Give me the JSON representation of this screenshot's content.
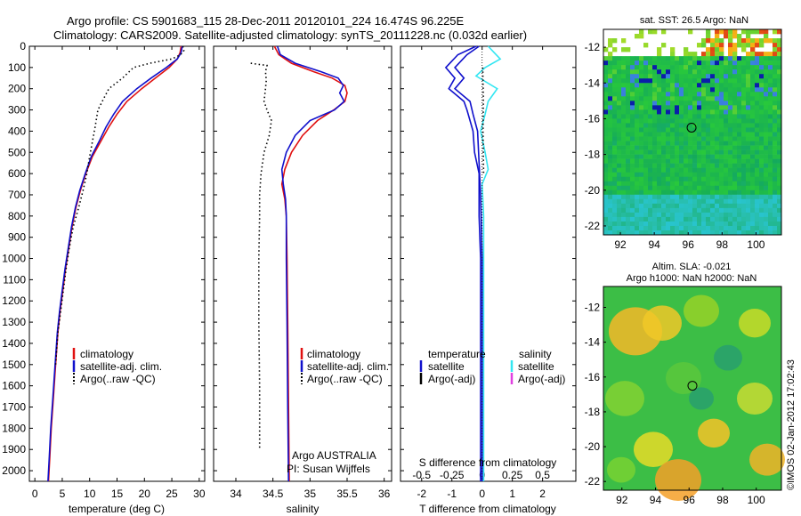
{
  "figure": {
    "title_line1": "Argo profile: CS 5901683_115 28-Dec-2011 20120101_224 16.474S 96.225E",
    "title_line2": "Climatology: CARS2009. Satellite-adjusted climatology: synTS_20111228.nc (0.032d earlier)",
    "watermark": "©IMOS 02-Jan-2012 17:02:43",
    "colors": {
      "climatology": "#e01010",
      "satellite": "#1010cc",
      "argo": "#000000",
      "salinity_satellite": "#33e6f2",
      "salinity_argo": "#e040e0"
    }
  },
  "chart_data": [
    {
      "id": "temperature",
      "type": "line",
      "xlabel": "temperature (deg C)",
      "xlim": [
        -1,
        31
      ],
      "ylim": [
        2050,
        0
      ],
      "x_ticks": [
        0,
        5,
        10,
        15,
        20,
        25,
        30
      ],
      "y_ticks": [
        0,
        100,
        200,
        300,
        400,
        500,
        600,
        700,
        800,
        900,
        1000,
        1100,
        1200,
        1300,
        1400,
        1500,
        1600,
        1700,
        1800,
        1900,
        2000
      ],
      "legend": [
        "climatology",
        "satellite-adj. clim.",
        "Argo(..raw -QC)"
      ],
      "series": [
        {
          "name": "climatology",
          "style": "solid",
          "color": "#e01010",
          "points": [
            [
              26.7,
              0
            ],
            [
              26.5,
              30
            ],
            [
              26.0,
              60
            ],
            [
              24.5,
              100
            ],
            [
              22.0,
              150
            ],
            [
              19.5,
              200
            ],
            [
              16.8,
              260
            ],
            [
              15.0,
              320
            ],
            [
              13.5,
              380
            ],
            [
              12.0,
              450
            ],
            [
              10.5,
              520
            ],
            [
              9.3,
              600
            ],
            [
              8.3,
              680
            ],
            [
              7.5,
              760
            ],
            [
              6.8,
              850
            ],
            [
              6.2,
              950
            ],
            [
              5.6,
              1050
            ],
            [
              5.1,
              1150
            ],
            [
              4.6,
              1250
            ],
            [
              4.2,
              1350
            ],
            [
              3.8,
              1500
            ],
            [
              3.4,
              1650
            ],
            [
              3.0,
              1800
            ],
            [
              2.7,
              1950
            ],
            [
              2.5,
              2050
            ]
          ]
        },
        {
          "name": "satellite-adj. clim.",
          "style": "solid",
          "color": "#1010cc",
          "points": [
            [
              26.9,
              0
            ],
            [
              26.7,
              30
            ],
            [
              26.0,
              60
            ],
            [
              24.0,
              100
            ],
            [
              21.2,
              150
            ],
            [
              18.6,
              200
            ],
            [
              16.0,
              260
            ],
            [
              14.4,
              320
            ],
            [
              13.0,
              380
            ],
            [
              11.7,
              450
            ],
            [
              10.3,
              520
            ],
            [
              9.2,
              600
            ],
            [
              8.2,
              680
            ],
            [
              7.4,
              760
            ],
            [
              6.7,
              850
            ],
            [
              6.1,
              950
            ],
            [
              5.5,
              1050
            ],
            [
              5.0,
              1150
            ],
            [
              4.5,
              1250
            ],
            [
              4.1,
              1350
            ],
            [
              3.7,
              1500
            ],
            [
              3.3,
              1650
            ],
            [
              2.9,
              1800
            ],
            [
              2.6,
              1950
            ],
            [
              2.4,
              2050
            ]
          ]
        },
        {
          "name": "Argo(..raw -QC)",
          "style": "dotted",
          "color": "#000000",
          "points": [
            [
              27.0,
              0
            ],
            [
              27.2,
              20
            ],
            [
              26.6,
              40
            ],
            [
              25.0,
              60
            ],
            [
              21.0,
              80
            ],
            [
              18.0,
              100
            ],
            [
              16.0,
              150
            ],
            [
              13.5,
              200
            ],
            [
              12.5,
              250
            ],
            [
              11.5,
              300
            ],
            [
              11.0,
              380
            ],
            [
              10.5,
              450
            ],
            [
              10.0,
              520
            ],
            [
              9.5,
              600
            ],
            [
              8.8,
              680
            ],
            [
              8.0,
              760
            ],
            [
              7.0,
              850
            ],
            [
              6.3,
              950
            ],
            [
              5.7,
              1050
            ],
            [
              5.2,
              1150
            ],
            [
              4.7,
              1250
            ],
            [
              4.2,
              1350
            ],
            [
              3.8,
              1500
            ]
          ]
        }
      ]
    },
    {
      "id": "salinity",
      "type": "line",
      "xlabel": "salinity",
      "xlim": [
        33.7,
        36.1
      ],
      "ylim": [
        2050,
        0
      ],
      "x_ticks": [
        34,
        34.5,
        35,
        35.5,
        36
      ],
      "legend": [
        "climatology",
        "satellite-adj. clim.",
        "Argo(..raw -QC)"
      ],
      "annotation": [
        "Argo AUSTRALIA",
        "PI: Susan Wijffels"
      ],
      "series": [
        {
          "name": "climatology",
          "style": "solid",
          "color": "#e01010",
          "points": [
            [
              34.52,
              0
            ],
            [
              34.58,
              40
            ],
            [
              34.75,
              80
            ],
            [
              35.05,
              120
            ],
            [
              35.3,
              150
            ],
            [
              35.47,
              185
            ],
            [
              35.5,
              220
            ],
            [
              35.47,
              260
            ],
            [
              35.32,
              300
            ],
            [
              35.1,
              350
            ],
            [
              34.9,
              420
            ],
            [
              34.75,
              500
            ],
            [
              34.66,
              580
            ],
            [
              34.62,
              650
            ],
            [
              34.66,
              720
            ],
            [
              34.68,
              800
            ],
            [
              34.69,
              1000
            ],
            [
              34.7,
              1300
            ],
            [
              34.71,
              1700
            ],
            [
              34.72,
              2050
            ]
          ]
        },
        {
          "name": "satellite-adj. clim.",
          "style": "solid",
          "color": "#1010cc",
          "points": [
            [
              34.56,
              0
            ],
            [
              34.6,
              40
            ],
            [
              34.8,
              80
            ],
            [
              35.15,
              120
            ],
            [
              35.38,
              150
            ],
            [
              35.45,
              185
            ],
            [
              35.4,
              220
            ],
            [
              35.46,
              260
            ],
            [
              35.33,
              300
            ],
            [
              35.0,
              350
            ],
            [
              34.8,
              420
            ],
            [
              34.68,
              500
            ],
            [
              34.62,
              580
            ],
            [
              34.64,
              650
            ],
            [
              34.67,
              720
            ],
            [
              34.68,
              800
            ],
            [
              34.68,
              1000
            ],
            [
              34.69,
              1300
            ],
            [
              34.7,
              1700
            ],
            [
              34.71,
              2050
            ]
          ]
        },
        {
          "name": "Argo(..raw -QC)",
          "style": "dotted",
          "color": "#000000",
          "points": [
            [
              34.2,
              80
            ],
            [
              34.3,
              85
            ],
            [
              34.42,
              90
            ],
            [
              34.4,
              120
            ],
            [
              34.41,
              160
            ],
            [
              34.4,
              200
            ],
            [
              34.38,
              260
            ],
            [
              34.42,
              300
            ],
            [
              34.48,
              350
            ],
            [
              34.45,
              420
            ],
            [
              34.38,
              500
            ],
            [
              34.34,
              600
            ],
            [
              34.32,
              700
            ],
            [
              34.32,
              800
            ],
            [
              34.31,
              1000
            ],
            [
              34.31,
              1300
            ],
            [
              34.32,
              1600
            ],
            [
              34.32,
              1900
            ]
          ]
        }
      ]
    },
    {
      "id": "difference",
      "type": "line",
      "xlabel": "T difference from climatology",
      "xlabel_top": "S difference from climatology",
      "xlim": [
        -2.7,
        3.1
      ],
      "ylim": [
        2050,
        0
      ],
      "x_ticks": [
        -2,
        -1,
        0,
        1,
        2
      ],
      "x_ticks_top": [
        "-0.5",
        "-0.25",
        "0",
        "0.25",
        "0.5"
      ],
      "x_ticks_top_pos": [
        -2,
        -1,
        0,
        1,
        2
      ],
      "legend_headers": [
        "temperature",
        "salinity"
      ],
      "legend": [
        "satellite",
        "Argo(-adj)",
        "satellite",
        "Argo(-adj)"
      ],
      "series": [
        {
          "name": "temperature satellite",
          "style": "solid",
          "color": "#1010cc",
          "points": [
            [
              -0.2,
              0
            ],
            [
              -0.8,
              40
            ],
            [
              -1.2,
              100
            ],
            [
              -0.9,
              150
            ],
            [
              -1.1,
              200
            ],
            [
              -0.6,
              260
            ],
            [
              -0.5,
              300
            ],
            [
              -0.3,
              400
            ],
            [
              -0.25,
              500
            ],
            [
              -0.1,
              600
            ],
            [
              -0.1,
              800
            ],
            [
              -0.05,
              1000
            ],
            [
              -0.05,
              1500
            ],
            [
              -0.05,
              2050
            ]
          ]
        },
        {
          "name": "salinity satellite",
          "style": "solid",
          "color": "#33e6f2",
          "points": [
            [
              0.2,
              0
            ],
            [
              0.4,
              30
            ],
            [
              0.6,
              60
            ],
            [
              0.1,
              100
            ],
            [
              -0.2,
              140
            ],
            [
              0.5,
              200
            ],
            [
              0.2,
              260
            ],
            [
              0.1,
              320
            ],
            [
              -0.05,
              400
            ],
            [
              0.1,
              500
            ],
            [
              0.2,
              580
            ],
            [
              0.0,
              650
            ],
            [
              0.05,
              800
            ],
            [
              0.05,
              1000
            ],
            [
              0.05,
              1500
            ],
            [
              0.05,
              2050
            ]
          ]
        },
        {
          "name": "temperature satellite 2",
          "style": "solid",
          "color": "#1010cc",
          "points": [
            [
              -0.1,
              0
            ],
            [
              -0.5,
              40
            ],
            [
              -0.9,
              100
            ],
            [
              -0.6,
              150
            ],
            [
              -0.9,
              200
            ],
            [
              -0.4,
              260
            ],
            [
              -0.3,
              320
            ],
            [
              -0.15,
              400
            ],
            [
              -0.1,
              550
            ],
            [
              -0.05,
              700
            ],
            [
              0.0,
              1000
            ],
            [
              0.0,
              2050
            ]
          ]
        },
        {
          "name": "Argo dotted",
          "style": "dotted",
          "color": "#000000",
          "points": [
            [
              0.02,
              100
            ],
            [
              0.04,
              250
            ],
            [
              0.03,
              400
            ],
            [
              0.05,
              600
            ]
          ]
        }
      ]
    },
    {
      "id": "sst_map",
      "type": "heatmap",
      "title": "sat. SST: 26.5  Argo: NaN",
      "xlim": [
        91,
        101.5
      ],
      "ylim": [
        -22.5,
        -11
      ],
      "x_ticks": [
        92,
        94,
        96,
        98,
        100
      ],
      "y_ticks": [
        -12,
        -14,
        -16,
        -18,
        -20,
        -22
      ],
      "marker": [
        96.2,
        -16.5
      ]
    },
    {
      "id": "sla_map",
      "type": "heatmap",
      "title_line1": "Altim. SLA: -0.021",
      "title_line2": "Argo h1000: NaN h2000: NaN",
      "xlim": [
        90.9,
        101.5
      ],
      "ylim": [
        -22.5,
        -10.8
      ],
      "x_ticks": [
        92,
        94,
        96,
        98,
        100
      ],
      "y_ticks": [
        -12,
        -14,
        -16,
        -18,
        -20,
        -22
      ],
      "marker": [
        96.2,
        -16.5
      ]
    }
  ]
}
